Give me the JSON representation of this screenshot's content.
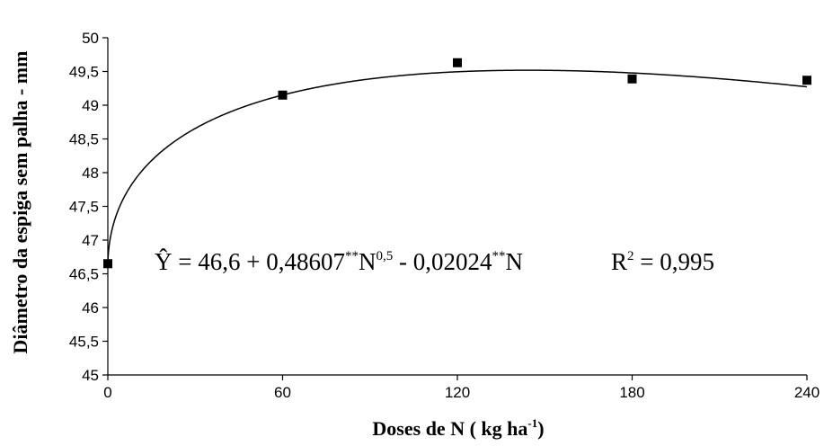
{
  "chart_data": {
    "type": "scatter",
    "xlabel_main": "Doses de N ( kg ha",
    "xlabel_sup": "-1",
    "xlabel_end": ")",
    "ylabel": "Diâmetro da espiga sem palha - mm",
    "xlim": [
      0,
      240
    ],
    "ylim": [
      45,
      50
    ],
    "x_ticks": [
      0,
      60,
      120,
      180,
      240
    ],
    "x_tick_labels": [
      "0",
      "60",
      "120",
      "180",
      "240"
    ],
    "y_ticks": [
      45,
      45.5,
      46,
      46.5,
      47,
      47.5,
      48,
      48.5,
      49,
      49.5,
      50
    ],
    "y_tick_labels": [
      "45",
      "45,5",
      "46",
      "46,5",
      "47",
      "47,5",
      "48",
      "48,5",
      "49",
      "49,5",
      "50"
    ],
    "points": [
      {
        "x": 0,
        "y": 46.65
      },
      {
        "x": 60,
        "y": 49.15
      },
      {
        "x": 120,
        "y": 49.63
      },
      {
        "x": 180,
        "y": 49.39
      },
      {
        "x": 240,
        "y": 49.37
      }
    ],
    "fit": {
      "intercept": 46.6,
      "b_sqrt": 0.48607,
      "b_lin": -0.02024
    },
    "equation": {
      "yhat": "Ŷ",
      "part1": " = 46,6 + 0,48607",
      "sup1": "**",
      "part2": "N",
      "sup2": "0,5",
      "part3": " - 0,02024",
      "sup3": "**",
      "part4": "N",
      "r2_label": "R",
      "r2_sup": "2",
      "r2_value": " = 0,995"
    },
    "grid": false,
    "legend": "none"
  }
}
